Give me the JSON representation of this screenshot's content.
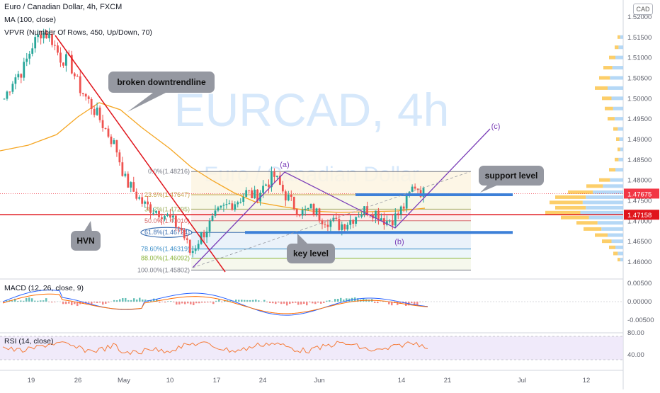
{
  "header": {
    "title": "Euro / Canadian Dollar, 4h, FXCM",
    "ma_label": "MA (100, close)",
    "vpvr_label": "VPVR (Number Of Rows, 450, Up/Down, 70)",
    "currency": "CAD"
  },
  "watermark": {
    "symbol": "EURCAD, 4h",
    "name": "Euro / Canadian Dollar"
  },
  "annotations": {
    "broken_downtrend": "broken downtrendline",
    "hvn": "HVN",
    "key_level": "key level",
    "support_level": "support level",
    "wave_a": "(a)",
    "wave_b": "(b)",
    "wave_c": "(c)"
  },
  "fib_levels": [
    {
      "label": "0.0%(1.48216)",
      "value": 1.48216,
      "color": "#787b86"
    },
    {
      "label": "23.6%(1.47647)",
      "value": 1.47647,
      "color": "#c5a54c"
    },
    {
      "label": "38.2%(1.47295)",
      "value": 1.47295,
      "color": "#a0b060"
    },
    {
      "label": "50.0%(1.47010)",
      "value": 1.4701,
      "color": "#d46a6a"
    },
    {
      "label": "61.8%(1.46724)",
      "value": 1.46724,
      "color": "#3d6fb0"
    },
    {
      "label": "78.60%(1.46319)",
      "value": 1.46319,
      "color": "#3a8ec8"
    },
    {
      "label": "88.00%(1.46092)",
      "value": 1.46092,
      "color": "#8ab33a"
    },
    {
      "label": "100.00%(1.45802)",
      "value": 1.45802,
      "color": "#787b86"
    }
  ],
  "indicators": {
    "macd_label": "MACD (12, 26, close, 9)",
    "rsi_label": "RSI (14, close)",
    "macd_ticks": [
      "0.00500",
      "0.00000",
      "-0.00500"
    ],
    "rsi_ticks": [
      "80.00",
      "40.00"
    ]
  },
  "price_tags": [
    {
      "label": "1.47675",
      "value": 1.47675,
      "color": "#f23645"
    },
    {
      "label": "1.47158",
      "value": 1.47158,
      "color": "#e0151c"
    }
  ],
  "chart_data": {
    "type": "candlestick",
    "title": "Euro / Canadian Dollar, 4h, FXCM",
    "y_ticks": [
      "1.52000",
      "1.51500",
      "1.51000",
      "1.50500",
      "1.50000",
      "1.49500",
      "1.49000",
      "1.48500",
      "1.48000",
      "1.47500",
      "1.47000",
      "1.46500",
      "1.46000"
    ],
    "y_tick_values": [
      1.52,
      1.515,
      1.51,
      1.505,
      1.5,
      1.495,
      1.49,
      1.485,
      1.48,
      1.475,
      1.47,
      1.465,
      1.46
    ],
    "ylim": [
      1.4565,
      1.5212
    ],
    "x_ticks": [
      "19",
      "26",
      "May",
      "10",
      "17",
      "24",
      "Jun",
      "14",
      "21",
      "Jul",
      "12"
    ],
    "close_series": [
      {
        "date": "Apr 15",
        "close": 1.5
      },
      {
        "date": "Apr 17",
        "close": 1.505
      },
      {
        "date": "Apr 19",
        "close": 1.507
      },
      {
        "date": "Apr 20",
        "close": 1.513
      },
      {
        "date": "Apr 21",
        "close": 1.5165
      },
      {
        "date": "Apr 22",
        "close": 1.515
      },
      {
        "date": "Apr 23",
        "close": 1.51
      },
      {
        "date": "Apr 26",
        "close": 1.509
      },
      {
        "date": "Apr 27",
        "close": 1.503
      },
      {
        "date": "Apr 28",
        "close": 1.4995
      },
      {
        "date": "Apr 29",
        "close": 1.496
      },
      {
        "date": "Apr 30",
        "close": 1.492
      },
      {
        "date": "May 3",
        "close": 1.488
      },
      {
        "date": "May 4",
        "close": 1.48
      },
      {
        "date": "May 5",
        "close": 1.477
      },
      {
        "date": "May 6",
        "close": 1.474
      },
      {
        "date": "May 7",
        "close": 1.473
      },
      {
        "date": "May 10",
        "close": 1.472
      },
      {
        "date": "May 11",
        "close": 1.47
      },
      {
        "date": "May 12",
        "close": 1.468
      },
      {
        "date": "May 13",
        "close": 1.462
      },
      {
        "date": "May 14",
        "close": 1.466
      },
      {
        "date": "May 17",
        "close": 1.469
      },
      {
        "date": "May 18",
        "close": 1.472
      },
      {
        "date": "May 19",
        "close": 1.474
      },
      {
        "date": "May 20",
        "close": 1.475
      },
      {
        "date": "May 21",
        "close": 1.477
      },
      {
        "date": "May 24",
        "close": 1.476
      },
      {
        "date": "May 25",
        "close": 1.479
      },
      {
        "date": "May 26",
        "close": 1.481
      },
      {
        "date": "May 27",
        "close": 1.477
      },
      {
        "date": "May 28",
        "close": 1.474
      },
      {
        "date": "May 31",
        "close": 1.472
      },
      {
        "date": "Jun 1",
        "close": 1.473
      },
      {
        "date": "Jun 2",
        "close": 1.471
      },
      {
        "date": "Jun 3",
        "close": 1.47
      },
      {
        "date": "Jun 4",
        "close": 1.469
      },
      {
        "date": "Jun 7",
        "close": 1.47
      },
      {
        "date": "Jun 8",
        "close": 1.472
      },
      {
        "date": "Jun 9",
        "close": 1.473
      },
      {
        "date": "Jun 10",
        "close": 1.472
      },
      {
        "date": "Jun 11",
        "close": 1.47
      },
      {
        "date": "Jun 14",
        "close": 1.471
      },
      {
        "date": "Jun 15",
        "close": 1.474
      },
      {
        "date": "Jun 16",
        "close": 1.479
      },
      {
        "date": "Jun 17",
        "close": 1.4768
      }
    ]
  },
  "colors": {
    "up": "#26a69a",
    "down": "#ef5350",
    "ma": "#f5a623",
    "trendline": "#e0151c",
    "wave": "#7b3fb8",
    "zone": "#3d80d8",
    "watermark": "#d6e8fb"
  }
}
